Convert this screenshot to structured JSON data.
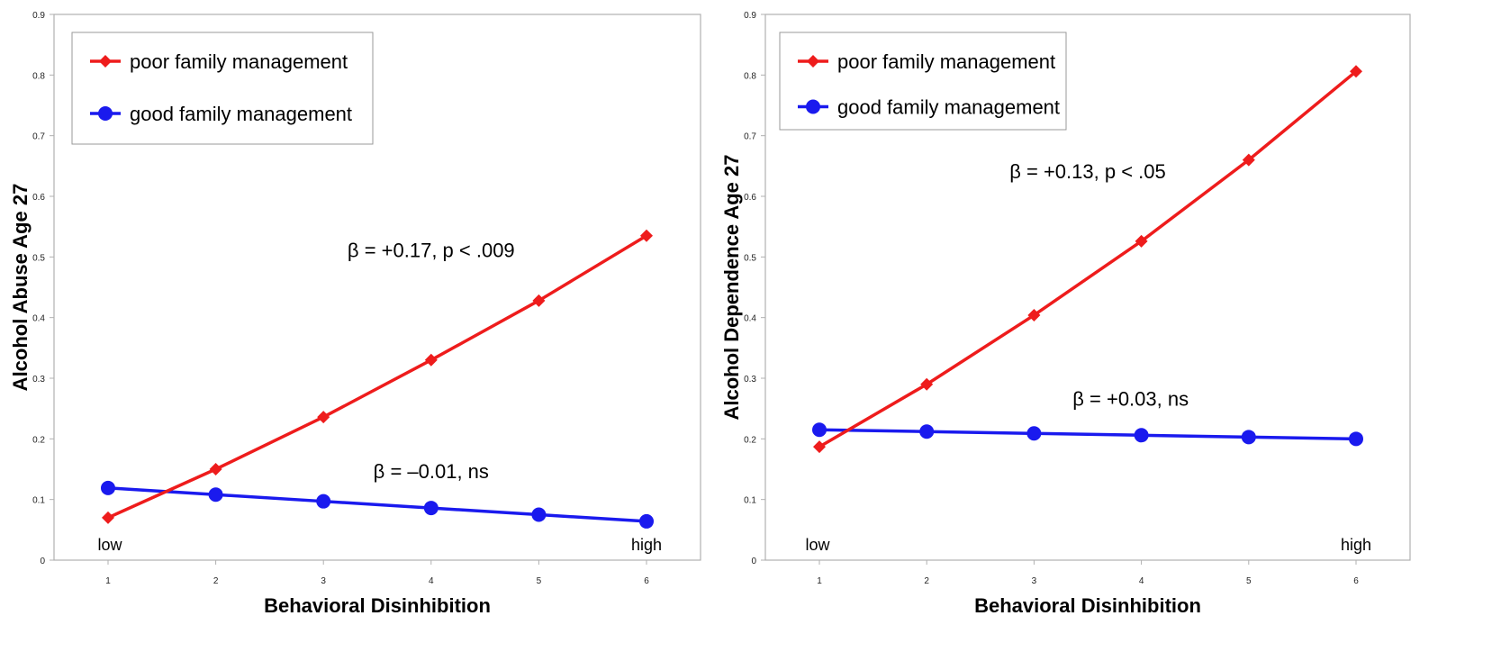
{
  "colors": {
    "poor": "#ee1c1c",
    "good": "#1a1aee",
    "axis": "#b0b0b0"
  },
  "chart_data": [
    {
      "type": "line",
      "xlabel": "Behavioral Disinhibition",
      "ylabel": "Alcohol Abuse Age 27",
      "x": [
        1,
        2,
        3,
        4,
        5,
        6
      ],
      "xticks": [
        "1",
        "2",
        "3",
        "4",
        "5",
        "6"
      ],
      "ylim": [
        0,
        0.9
      ],
      "yticks": [
        "0",
        "0.1",
        "0.2",
        "0.3",
        "0.4",
        "0.5",
        "0.6",
        "0.7",
        "0.8",
        "0.9"
      ],
      "grid": false,
      "legend_position": "top-left",
      "end_labels": {
        "low": "low",
        "high": "high"
      },
      "series": [
        {
          "name": "poor family management",
          "marker": "diamond",
          "values": [
            0.07,
            0.15,
            0.236,
            0.33,
            0.428,
            0.535
          ]
        },
        {
          "name": "good family management",
          "marker": "circle",
          "values": [
            0.119,
            0.108,
            0.097,
            0.086,
            0.075,
            0.064
          ]
        }
      ],
      "annotations": [
        {
          "text": "β = +0.17, p < .009",
          "x": 4,
          "y": 0.5
        },
        {
          "text": "β = –0.01, ns",
          "x": 4,
          "y": 0.135
        }
      ]
    },
    {
      "type": "line",
      "xlabel": "Behavioral Disinhibition",
      "ylabel": "Alcohol Dependence Age 27",
      "x": [
        1,
        2,
        3,
        4,
        5,
        6
      ],
      "xticks": [
        "1",
        "2",
        "3",
        "4",
        "5",
        "6"
      ],
      "ylim": [
        0,
        0.9
      ],
      "yticks": [
        "0",
        "0.1",
        "0.2",
        "0.3",
        "0.4",
        "0.5",
        "0.6",
        "0.7",
        "0.8",
        "0.9"
      ],
      "grid": false,
      "legend_position": "top-left",
      "end_labels": {
        "low": "low",
        "high": "high"
      },
      "series": [
        {
          "name": "poor family management",
          "marker": "diamond",
          "values": [
            0.187,
            0.29,
            0.404,
            0.526,
            0.66,
            0.806
          ]
        },
        {
          "name": "good family management",
          "marker": "circle",
          "values": [
            0.215,
            0.212,
            0.209,
            0.206,
            0.203,
            0.2
          ]
        }
      ],
      "annotations": [
        {
          "text": "β = +0.13, p < .05",
          "x": 3.5,
          "y": 0.63
        },
        {
          "text": "β = +0.03, ns",
          "x": 3.9,
          "y": 0.255
        }
      ]
    }
  ]
}
